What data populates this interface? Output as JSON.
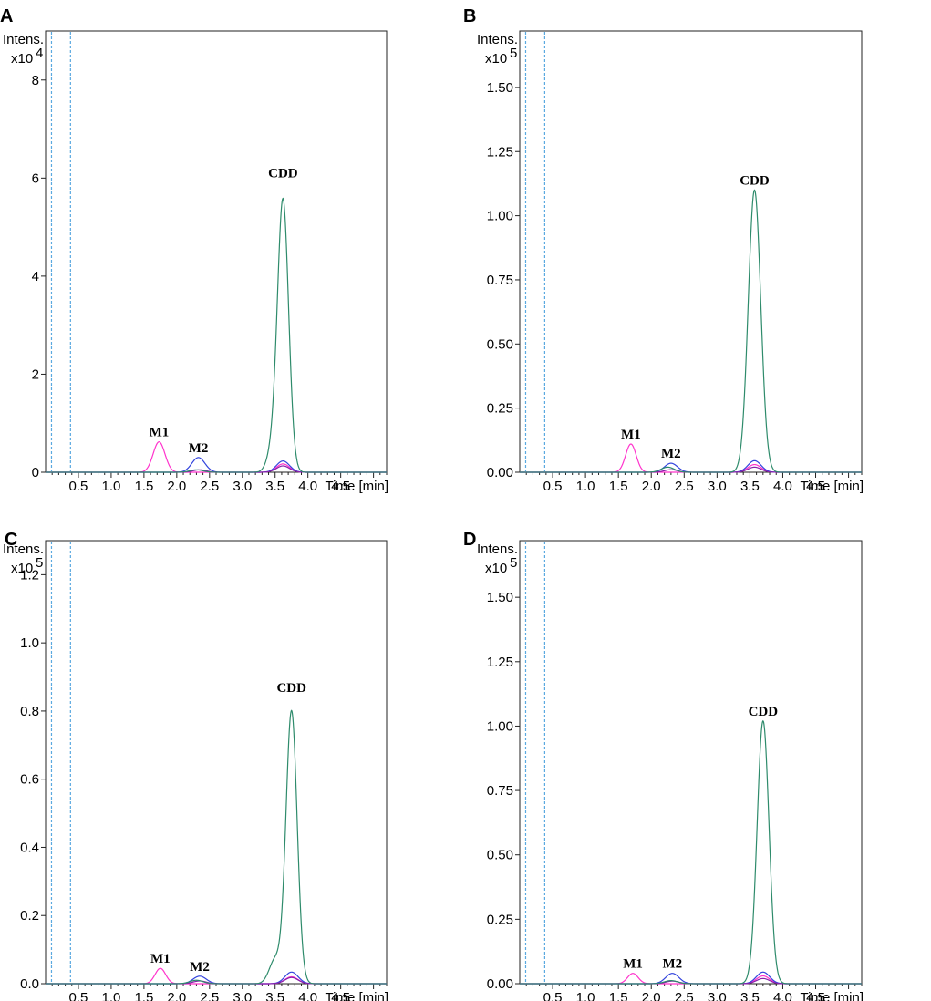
{
  "chart_data": [
    {
      "panel": "A",
      "type": "line",
      "ylabel": "Intens.",
      "y_multiplier": "x10",
      "y_exponent": "4",
      "xlabel": "Time [min]",
      "xlim": [
        0,
        5.2
      ],
      "ylim": [
        0,
        9.0
      ],
      "x_ticks": [
        "0.5",
        "1.0",
        "1.5",
        "2.0",
        "2.5",
        "3.0",
        "3.5",
        "4.0",
        "4.5"
      ],
      "x_tick_values": [
        0.5,
        1.0,
        1.5,
        2.0,
        2.5,
        3.0,
        3.5,
        4.0,
        4.5
      ],
      "y_ticks": [
        "0",
        "2",
        "4",
        "6",
        "8"
      ],
      "y_tick_values": [
        0,
        2,
        4,
        6,
        8
      ],
      "marker_lines_x": [
        0.09,
        0.38
      ],
      "series": [
        {
          "color": "#ff33cc",
          "peaks": [
            {
              "x": 1.73,
              "height": 0.62,
              "width": 0.09
            },
            {
              "x": 3.62,
              "height": 0.17,
              "width": 0.1
            }
          ]
        },
        {
          "color": "#3344dd",
          "peaks": [
            {
              "x": 2.33,
              "height": 0.3,
              "width": 0.1
            },
            {
              "x": 3.62,
              "height": 0.23,
              "width": 0.1
            }
          ]
        },
        {
          "color": "#8822aa",
          "peaks": [
            {
              "x": 2.35,
              "height": 0.05,
              "width": 0.1
            },
            {
              "x": 3.62,
              "height": 0.13,
              "width": 0.1
            }
          ]
        },
        {
          "color": "#2e8b6b",
          "peaks": [
            {
              "x": 2.3,
              "height": 0.05,
              "width": 0.1
            },
            {
              "x": 3.45,
              "height": 0.35,
              "width": 0.08
            },
            {
              "x": 3.62,
              "height": 5.55,
              "width": 0.085
            }
          ]
        }
      ],
      "annotations": [
        {
          "text": "M1",
          "x": 1.73,
          "y": 0.62
        },
        {
          "text": "M2",
          "x": 2.33,
          "y": 0.3
        },
        {
          "text": "CDD",
          "x": 3.62,
          "y": 5.9
        }
      ]
    },
    {
      "panel": "B",
      "type": "line",
      "ylabel": "Intens.",
      "y_multiplier": "x10",
      "y_exponent": "5",
      "xlabel": "Time [min]",
      "xlim": [
        0,
        5.2
      ],
      "ylim": [
        0,
        1.72
      ],
      "x_ticks": [
        "0.5",
        "1.0",
        "1.5",
        "2.0",
        "2.5",
        "3.0",
        "3.5",
        "4.0",
        "4.5"
      ],
      "x_tick_values": [
        0.5,
        1.0,
        1.5,
        2.0,
        2.5,
        3.0,
        3.5,
        4.0,
        4.5
      ],
      "y_ticks": [
        "0.00",
        "0.25",
        "0.50",
        "0.75",
        "1.00",
        "1.25",
        "1.50"
      ],
      "y_tick_values": [
        0,
        0.25,
        0.5,
        0.75,
        1.0,
        1.25,
        1.5
      ],
      "marker_lines_x": [
        0.09,
        0.38
      ],
      "series": [
        {
          "color": "#ff33cc",
          "peaks": [
            {
              "x": 1.69,
              "height": 0.11,
              "width": 0.08
            },
            {
              "x": 3.57,
              "height": 0.03,
              "width": 0.1
            }
          ]
        },
        {
          "color": "#3344dd",
          "peaks": [
            {
              "x": 2.3,
              "height": 0.035,
              "width": 0.1
            },
            {
              "x": 3.57,
              "height": 0.045,
              "width": 0.1
            }
          ]
        },
        {
          "color": "#8822aa",
          "peaks": [
            {
              "x": 2.3,
              "height": 0.01,
              "width": 0.1
            },
            {
              "x": 3.57,
              "height": 0.02,
              "width": 0.1
            }
          ]
        },
        {
          "color": "#2e8b6b",
          "peaks": [
            {
              "x": 2.25,
              "height": 0.02,
              "width": 0.1
            },
            {
              "x": 3.57,
              "height": 1.1,
              "width": 0.095
            }
          ]
        }
      ],
      "annotations": [
        {
          "text": "M1",
          "x": 1.69,
          "y": 0.11
        },
        {
          "text": "M2",
          "x": 2.3,
          "y": 0.035
        },
        {
          "text": "CDD",
          "x": 3.57,
          "y": 1.1
        }
      ]
    },
    {
      "panel": "C",
      "type": "line",
      "ylabel": "Intens.",
      "y_multiplier": "x10",
      "y_exponent": "5",
      "xlabel": "Time [min]",
      "xlim": [
        0,
        5.2
      ],
      "ylim": [
        0,
        1.3
      ],
      "x_ticks": [
        "0.5",
        "1.0",
        "1.5",
        "2.0",
        "2.5",
        "3.0",
        "3.5",
        "4.0",
        "4.5"
      ],
      "x_tick_values": [
        0.5,
        1.0,
        1.5,
        2.0,
        2.5,
        3.0,
        3.5,
        4.0,
        4.5
      ],
      "y_ticks": [
        "0.0",
        "0.2",
        "0.4",
        "0.6",
        "0.8",
        "1.0",
        "1.2"
      ],
      "y_tick_values": [
        0,
        0.2,
        0.4,
        0.6,
        0.8,
        1.0,
        1.2
      ],
      "marker_lines_x": [
        0.09,
        0.38
      ],
      "series": [
        {
          "color": "#ff33cc",
          "peaks": [
            {
              "x": 1.75,
              "height": 0.045,
              "width": 0.08
            },
            {
              "x": 3.75,
              "height": 0.02,
              "width": 0.1
            }
          ]
        },
        {
          "color": "#3344dd",
          "peaks": [
            {
              "x": 2.35,
              "height": 0.022,
              "width": 0.1
            },
            {
              "x": 3.75,
              "height": 0.034,
              "width": 0.1
            }
          ]
        },
        {
          "color": "#8822aa",
          "peaks": [
            {
              "x": 2.35,
              "height": 0.008,
              "width": 0.1
            },
            {
              "x": 3.75,
              "height": 0.018,
              "width": 0.1
            }
          ]
        },
        {
          "color": "#2e8b6b",
          "peaks": [
            {
              "x": 2.3,
              "height": 0.01,
              "width": 0.1
            },
            {
              "x": 3.5,
              "height": 0.07,
              "width": 0.09
            },
            {
              "x": 3.75,
              "height": 0.8,
              "width": 0.085
            }
          ]
        }
      ],
      "annotations": [
        {
          "text": "M1",
          "x": 1.75,
          "y": 0.045
        },
        {
          "text": "M2",
          "x": 2.35,
          "y": 0.022
        },
        {
          "text": "CDD",
          "x": 3.75,
          "y": 0.84
        }
      ]
    },
    {
      "panel": "D",
      "type": "line",
      "ylabel": "Intens.",
      "y_multiplier": "x10",
      "y_exponent": "5",
      "xlabel": "Time [min]",
      "xlim": [
        0,
        5.2
      ],
      "ylim": [
        0,
        1.72
      ],
      "x_ticks": [
        "0.5",
        "1.0",
        "1.5",
        "2.0",
        "2.5",
        "3.0",
        "3.5",
        "4.0",
        "4.5"
      ],
      "x_tick_values": [
        0.5,
        1.0,
        1.5,
        2.0,
        2.5,
        3.0,
        3.5,
        4.0,
        4.5
      ],
      "y_ticks": [
        "0.00",
        "0.25",
        "0.50",
        "0.75",
        "1.00",
        "1.25",
        "1.50"
      ],
      "y_tick_values": [
        0,
        0.25,
        0.5,
        0.75,
        1.0,
        1.25,
        1.5
      ],
      "marker_lines_x": [
        0.09,
        0.38
      ],
      "series": [
        {
          "color": "#ff33cc",
          "peaks": [
            {
              "x": 1.72,
              "height": 0.04,
              "width": 0.08
            },
            {
              "x": 3.7,
              "height": 0.03,
              "width": 0.1
            }
          ]
        },
        {
          "color": "#3344dd",
          "peaks": [
            {
              "x": 2.32,
              "height": 0.04,
              "width": 0.1
            },
            {
              "x": 3.7,
              "height": 0.045,
              "width": 0.1
            }
          ]
        },
        {
          "color": "#8822aa",
          "peaks": [
            {
              "x": 2.32,
              "height": 0.01,
              "width": 0.1
            },
            {
              "x": 3.7,
              "height": 0.02,
              "width": 0.1
            }
          ]
        },
        {
          "color": "#2e8b6b",
          "peaks": [
            {
              "x": 2.3,
              "height": 0.012,
              "width": 0.1
            },
            {
              "x": 3.7,
              "height": 1.02,
              "width": 0.09
            }
          ]
        }
      ],
      "annotations": [
        {
          "text": "M1",
          "x": 1.72,
          "y": 0.04
        },
        {
          "text": "M2",
          "x": 2.32,
          "y": 0.04
        },
        {
          "text": "CDD",
          "x": 3.7,
          "y": 1.02
        }
      ]
    }
  ],
  "colors": {
    "frame": "#222222",
    "marker_line": "#5aa9e0"
  }
}
